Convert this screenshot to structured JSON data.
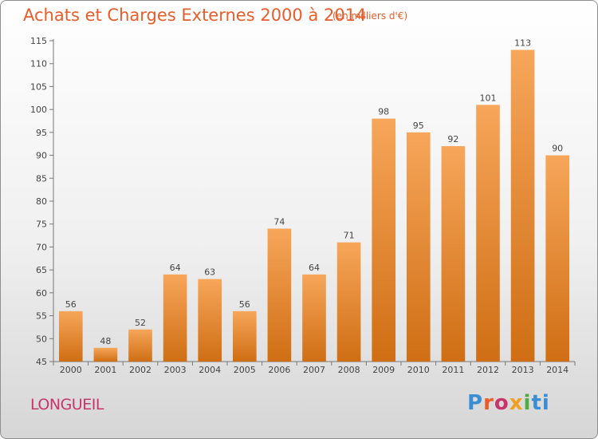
{
  "chart_data": {
    "type": "bar",
    "title": "Achats et Charges Externes 2000 à 2014",
    "subtitle": "(en milliers d'€)",
    "categories": [
      "2000",
      "2001",
      "2002",
      "2003",
      "2004",
      "2005",
      "2006",
      "2007",
      "2008",
      "2009",
      "2010",
      "2011",
      "2012",
      "2013",
      "2014"
    ],
    "values": [
      56,
      48,
      52,
      64,
      63,
      56,
      74,
      64,
      71,
      98,
      95,
      92,
      101,
      113,
      90
    ],
    "ylim": [
      45,
      115
    ],
    "yticks": [
      45,
      50,
      55,
      60,
      65,
      70,
      75,
      80,
      85,
      90,
      95,
      100,
      105,
      110,
      115
    ],
    "grid": false,
    "bar_color_top": "#f7a65a",
    "bar_color_bottom": "#cf6e14"
  },
  "footer": {
    "commune": "LONGUEIL",
    "logo_parts": [
      "P",
      "r",
      "o",
      "x",
      "i",
      "ti"
    ]
  },
  "colors": {
    "title": "#e85d2a",
    "commune": "#c8356c"
  }
}
